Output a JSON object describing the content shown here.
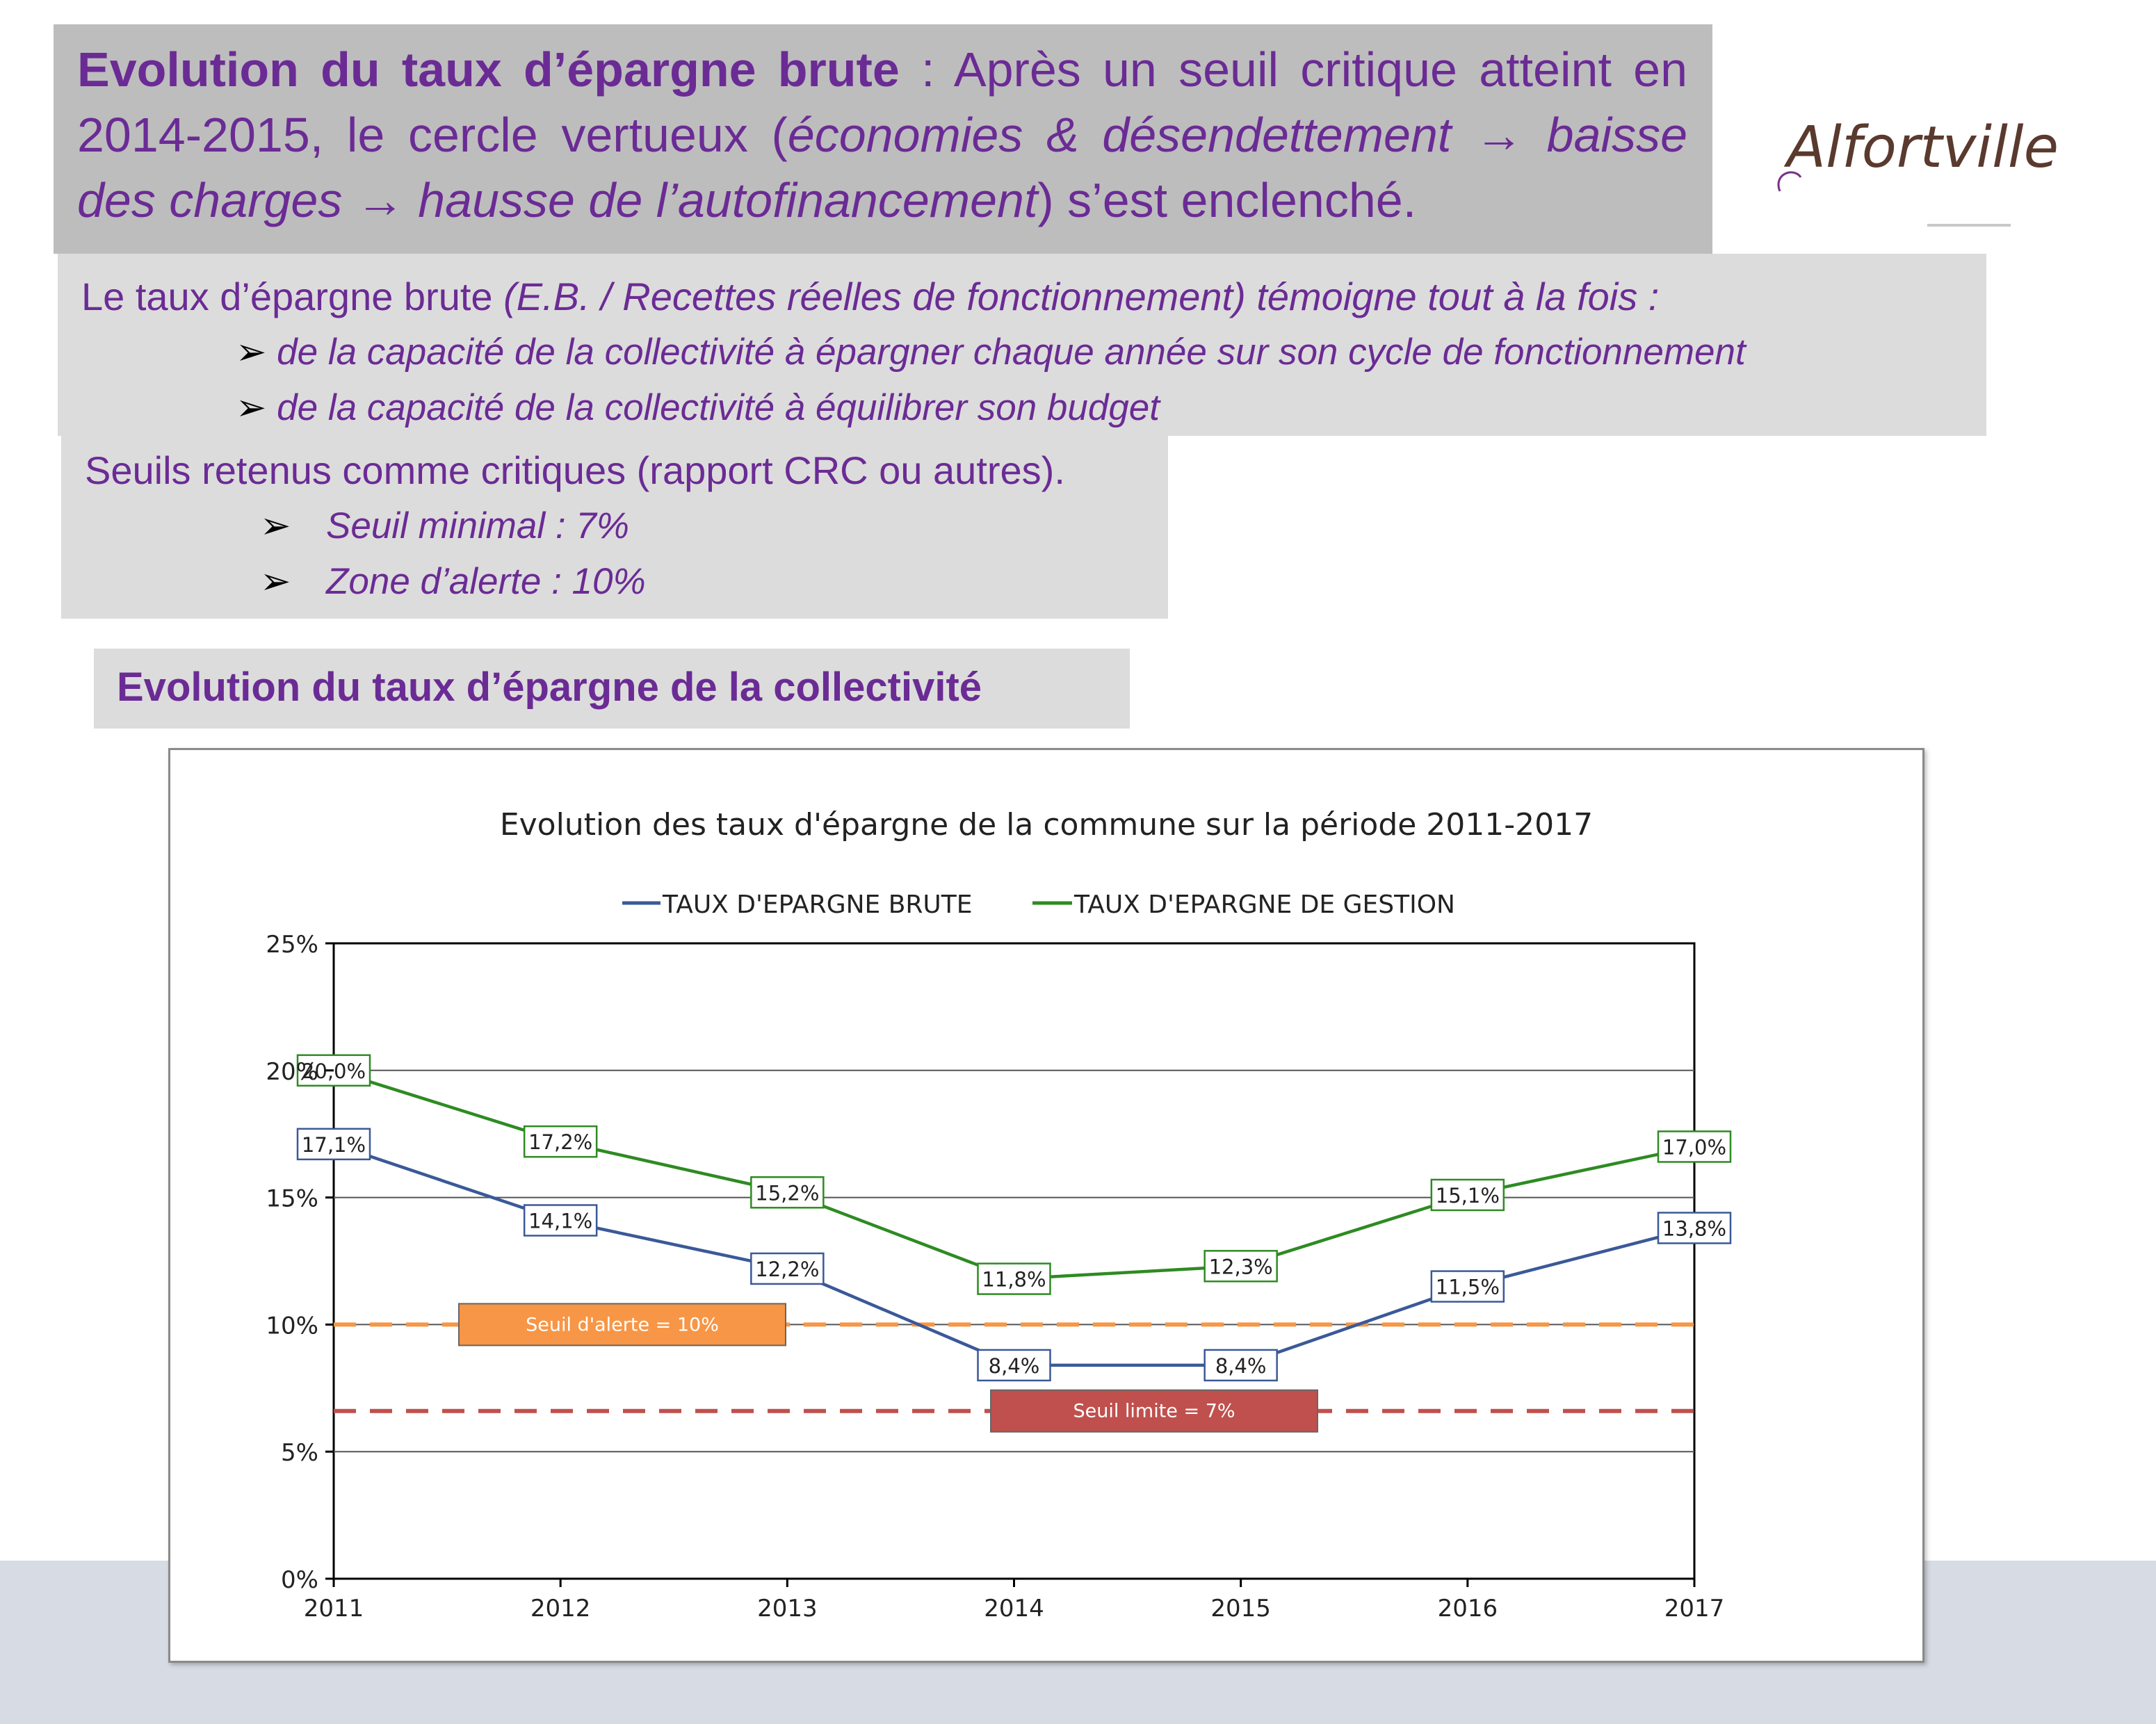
{
  "header": {
    "title_bold": "Evolution du taux d’épargne brute",
    "title_rest_1": " : Après un seuil critique atteint en 2014-2015, le cercle vertueux (",
    "title_italic_1": "économies & désendettement ",
    "title_arrow_1": "→",
    "title_italic_2": " baisse des charges ",
    "title_arrow_2": "→",
    "title_italic_3": " hausse de l’autofinancement",
    "title_rest_2": ") s’est enclenché."
  },
  "logo": {
    "text": "Alfortville"
  },
  "definition": {
    "intro": "Le taux d’épargne brute ",
    "intro_italic": "(E.B. / Recettes réelles de fonctionnement) témoigne tout à la fois :",
    "bullets": [
      "de la capacité de la collectivité à épargner chaque année sur son cycle de fonctionnement",
      "de la capacité de la collectivité à équilibrer son budget"
    ]
  },
  "thresholds": {
    "intro": "Seuils retenus comme critiques (rapport CRC ou autres).",
    "bullets": [
      "Seuil minimal : 7%",
      "Zone d’alerte : 10%"
    ]
  },
  "section_title": "Evolution du taux d’épargne de la collectivité",
  "bullet_glyph": "➢",
  "colors": {
    "purple": "#6b2b95",
    "brute": "#3b5998",
    "gestion": "#2e8b22",
    "alert": "#f79646",
    "limit": "#c0504d"
  },
  "chart_data": {
    "type": "line",
    "title": "Evolution des taux d'épargne de la commune sur la période 2011-2017",
    "x": [
      "2011",
      "2012",
      "2013",
      "2014",
      "2015",
      "2016",
      "2017"
    ],
    "y_ticks": [
      "0%",
      "5%",
      "10%",
      "15%",
      "20%",
      "25%"
    ],
    "ylim": [
      0,
      25
    ],
    "grid": true,
    "legend_position": "top",
    "series": [
      {
        "name": "TAUX D'EPARGNE BRUTE",
        "values": [
          17.1,
          14.1,
          12.2,
          8.4,
          8.4,
          11.5,
          13.8
        ],
        "labels": [
          "17,1%",
          "14,1%",
          "12,2%",
          "8,4%",
          "8,4%",
          "11,5%",
          "13,8%"
        ]
      },
      {
        "name": "TAUX D'EPARGNE DE GESTION",
        "values": [
          20.0,
          17.2,
          15.2,
          11.8,
          12.3,
          15.1,
          17.0
        ],
        "labels": [
          "20,0%",
          "17,2%",
          "15,2%",
          "11,8%",
          "12,3%",
          "15,1%",
          "17,0%"
        ]
      }
    ],
    "reference_lines": [
      {
        "label": "Seuil d'alerte = 10%",
        "value": 10
      },
      {
        "label": "Seuil limite = 7%",
        "value": 6.6
      }
    ]
  }
}
